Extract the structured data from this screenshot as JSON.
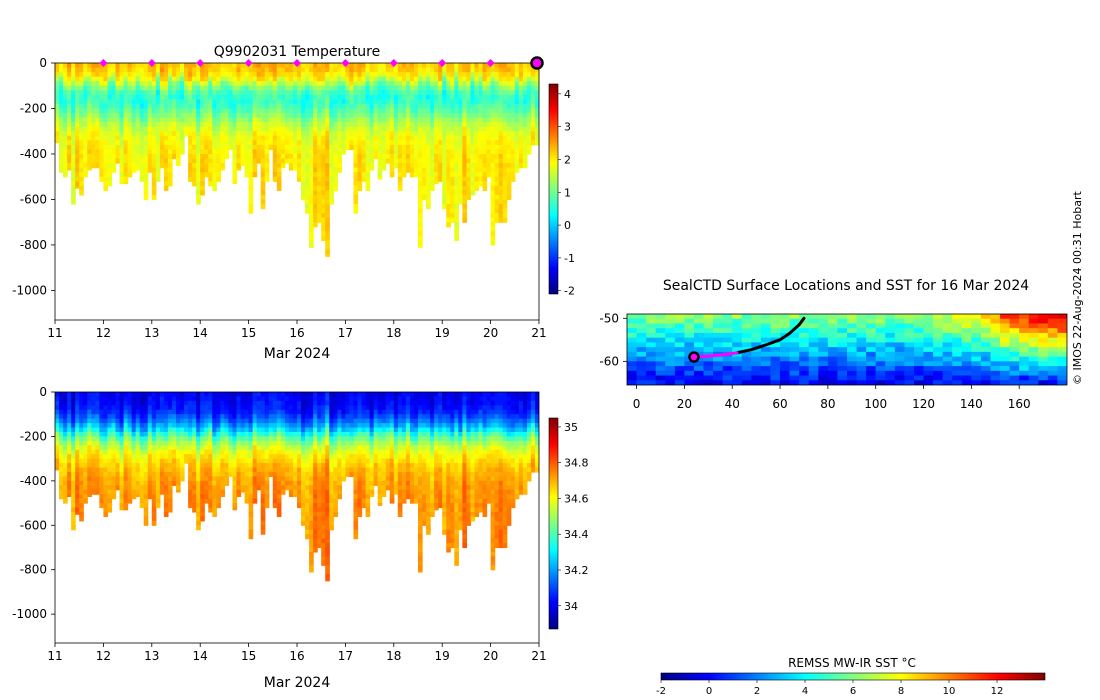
{
  "credit": "© IMOS 22-Aug-2024 00:31 Hobart",
  "chart_data": [
    {
      "id": "temperature-profile",
      "type": "heatmap",
      "title": "Q9902031  Temperature",
      "xlabel": "Mar 2024",
      "ylabel": "",
      "xlim": [
        11,
        21
      ],
      "ylim": [
        -1130,
        0
      ],
      "xticks": [
        "11",
        "12",
        "13",
        "14",
        "15",
        "16",
        "17",
        "18",
        "19",
        "20",
        "21"
      ],
      "yticks": [
        "0",
        "-200",
        "-400",
        "-600",
        "-800",
        "-1000"
      ],
      "colorbar": {
        "min": -2.1,
        "max": 4.3,
        "ticks": [
          "-2",
          "-1",
          "0",
          "1",
          "2",
          "3",
          "4"
        ],
        "colormap": "jet"
      },
      "surface_markers_day": [
        12,
        13,
        14,
        15,
        16,
        17,
        18,
        19,
        20
      ],
      "current_position_day": 21,
      "profile_max_depth_m": [
        350,
        480,
        500,
        470,
        620,
        550,
        580,
        500,
        470,
        460,
        460,
        520,
        560,
        540,
        480,
        440,
        530,
        530,
        500,
        480,
        470,
        520,
        600,
        480,
        600,
        520,
        460,
        560,
        540,
        420,
        450,
        400,
        320,
        520,
        540,
        620,
        580,
        500,
        540,
        560,
        520,
        470,
        420,
        380,
        530,
        470,
        450,
        500,
        660,
        500,
        440,
        640,
        520,
        380,
        520,
        560,
        460,
        440,
        470,
        470,
        520,
        600,
        660,
        810,
        720,
        700,
        780,
        850,
        620,
        560,
        480,
        400,
        380,
        380,
        660,
        560,
        520,
        560,
        470,
        420,
        510,
        470,
        440,
        500,
        460,
        560,
        500,
        480,
        500,
        500,
        810,
        600,
        640,
        560,
        530,
        520,
        640,
        720,
        700,
        780,
        620,
        700,
        600,
        580,
        560,
        540,
        560,
        500,
        800,
        700,
        700,
        700,
        600,
        520,
        480,
        460,
        460,
        400,
        360,
        360
      ],
      "depth_profile": [
        {
          "depth": 0,
          "value": 2.3
        },
        {
          "depth": 50,
          "value": 2.0
        },
        {
          "depth": 100,
          "value": 0.9
        },
        {
          "depth": 150,
          "value": 0.5
        },
        {
          "depth": 200,
          "value": 0.9
        },
        {
          "depth": 250,
          "value": 1.4
        },
        {
          "depth": 300,
          "value": 1.8
        },
        {
          "depth": 400,
          "value": 2.0
        },
        {
          "depth": 600,
          "value": 2.0
        },
        {
          "depth": 900,
          "value": 1.9
        }
      ]
    },
    {
      "id": "salinity-profile",
      "type": "heatmap",
      "title": "",
      "xlabel": "Mar 2024",
      "ylabel": "",
      "xlim": [
        11,
        21
      ],
      "ylim": [
        -1130,
        0
      ],
      "xticks": [
        "11",
        "12",
        "13",
        "14",
        "15",
        "16",
        "17",
        "18",
        "19",
        "20",
        "21"
      ],
      "yticks": [
        "0",
        "-200",
        "-400",
        "-600",
        "-800",
        "-1000"
      ],
      "colorbar": {
        "min": 33.87,
        "max": 35.05,
        "ticks": [
          "34",
          "34.2",
          "34.4",
          "34.6",
          "34.8",
          "35"
        ],
        "colormap": "jet"
      },
      "profile_max_depth_m": [
        350,
        480,
        500,
        470,
        620,
        550,
        580,
        500,
        470,
        460,
        460,
        520,
        560,
        540,
        480,
        440,
        530,
        530,
        500,
        480,
        470,
        520,
        600,
        480,
        600,
        520,
        460,
        560,
        540,
        420,
        450,
        400,
        320,
        520,
        540,
        620,
        580,
        500,
        540,
        560,
        520,
        470,
        420,
        380,
        530,
        470,
        450,
        500,
        660,
        500,
        440,
        640,
        520,
        380,
        520,
        560,
        460,
        440,
        470,
        470,
        520,
        600,
        660,
        810,
        720,
        700,
        780,
        850,
        620,
        560,
        480,
        400,
        380,
        380,
        660,
        560,
        520,
        560,
        470,
        420,
        510,
        470,
        440,
        500,
        460,
        560,
        500,
        480,
        500,
        500,
        810,
        600,
        640,
        560,
        530,
        520,
        640,
        720,
        700,
        780,
        620,
        700,
        600,
        580,
        560,
        540,
        560,
        500,
        800,
        700,
        700,
        700,
        600,
        520,
        480,
        460,
        460,
        400,
        360,
        360
      ],
      "depth_profile": [
        {
          "depth": 0,
          "value": 34.0
        },
        {
          "depth": 80,
          "value": 34.05
        },
        {
          "depth": 140,
          "value": 34.2
        },
        {
          "depth": 200,
          "value": 34.45
        },
        {
          "depth": 260,
          "value": 34.6
        },
        {
          "depth": 330,
          "value": 34.68
        },
        {
          "depth": 400,
          "value": 34.72
        },
        {
          "depth": 500,
          "value": 34.74
        },
        {
          "depth": 900,
          "value": 34.74
        }
      ]
    },
    {
      "id": "sst-map",
      "type": "heatmap",
      "title": "SealCTD Surface Locations and SST for 16 Mar 2024",
      "xlabel": "",
      "ylabel": "",
      "xlim": [
        -4,
        180
      ],
      "ylim": [
        -65.5,
        -49
      ],
      "xticks": [
        "0",
        "20",
        "40",
        "60",
        "80",
        "100",
        "120",
        "140",
        "160"
      ],
      "yticks": [
        "-50",
        "-60"
      ],
      "track_recent": [
        [
          24,
          -59
        ],
        [
          30,
          -58.8
        ],
        [
          36,
          -58.5
        ],
        [
          42,
          -58
        ]
      ],
      "track_older": [
        [
          42,
          -58
        ],
        [
          48,
          -57.3
        ],
        [
          54,
          -56.2
        ],
        [
          60,
          -55
        ],
        [
          64,
          -53.5
        ],
        [
          68,
          -51.5
        ],
        [
          70,
          -50
        ]
      ],
      "current_position": [
        24,
        -59
      ],
      "colorbar": {
        "label": "REMSS MW-IR SST °C",
        "min": -2,
        "max": 14,
        "ticks": [
          "-2",
          "0",
          "2",
          "4",
          "6",
          "8",
          "10",
          "12"
        ],
        "colormap": "jet"
      }
    }
  ]
}
